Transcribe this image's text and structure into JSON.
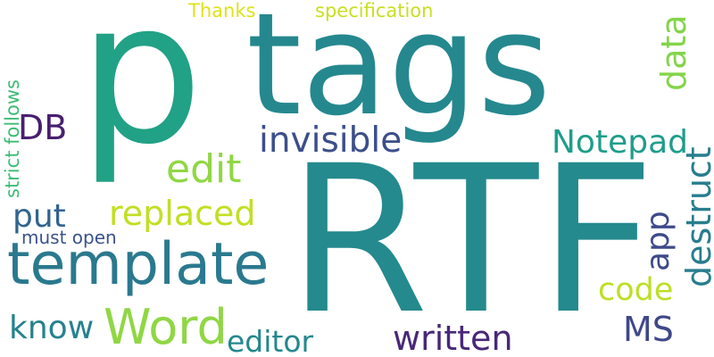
{
  "words": [
    {
      "text": "p",
      "color": "#21a185"
    },
    {
      "text": "tags",
      "color": "#25888e"
    },
    {
      "text": "RTF",
      "color": "#248a8d"
    },
    {
      "text": "template",
      "color": "#2a798e"
    },
    {
      "text": "Word",
      "color": "#8fd744"
    },
    {
      "text": "edit",
      "color": "#90d743"
    },
    {
      "text": "invisible",
      "color": "#3c4f8a"
    },
    {
      "text": "replaced",
      "color": "#c2df23"
    },
    {
      "text": "put",
      "color": "#32648e"
    },
    {
      "text": "DB",
      "color": "#481f70"
    },
    {
      "text": "Notepad",
      "color": "#1f9d8a"
    },
    {
      "text": "destruct",
      "color": "#287d8e"
    },
    {
      "text": "data",
      "color": "#84d44b"
    },
    {
      "text": "app",
      "color": "#3e4a89"
    },
    {
      "text": "code",
      "color": "#bddf26"
    },
    {
      "text": "MS",
      "color": "#3f4889"
    },
    {
      "text": "written",
      "color": "#482878"
    },
    {
      "text": "editor",
      "color": "#23888e"
    },
    {
      "text": "know",
      "color": "#26828e"
    },
    {
      "text": "must open",
      "color": "#3b528b"
    },
    {
      "text": "strict follows",
      "color": "#3dbc74"
    },
    {
      "text": "Thanks",
      "color": "#dde318"
    },
    {
      "text": "specification",
      "color": "#c8e020"
    }
  ]
}
